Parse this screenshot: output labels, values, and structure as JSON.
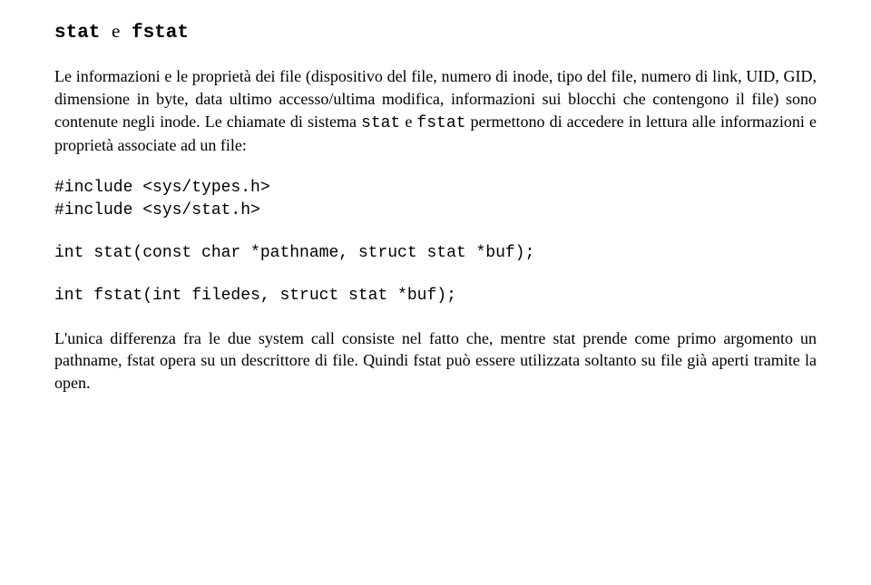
{
  "title": {
    "word1": "stat",
    "conj": "e",
    "word2": "fstat"
  },
  "para1": {
    "run1": "Le informazioni e le proprietà dei file (dispositivo del file, numero di inode, tipo del file, numero di link, UID, GID, dimensione in byte, data ultimo accesso/ultima modifica, informazioni sui blocchi che contengono il file) sono contenute negli inode.  Le chiamate di sistema ",
    "code1": "stat",
    "run2": " e ",
    "code2": "fstat",
    "run3": " permettono di accedere in lettura alle informazioni e proprietà associate ad un file:"
  },
  "include1": "#include <sys/types.h>",
  "include2": "#include <sys/stat.h>",
  "proto1": "int stat(const char *pathname, struct stat *buf);",
  "proto2": "int fstat(int filedes, struct stat *buf);",
  "para2": {
    "run1": "L'unica differenza fra le due system call consiste nel fatto che, mentre ",
    "code1": "stat",
    "run2": " prende come primo argomento un pathname, ",
    "code2": "fstat",
    "run3": " opera su un descrittore di file.  Quindi ",
    "code3": "fstat",
    "run4": " può essere utilizzata soltanto su file già aperti tramite la ",
    "code4": "open",
    "run5": "."
  }
}
